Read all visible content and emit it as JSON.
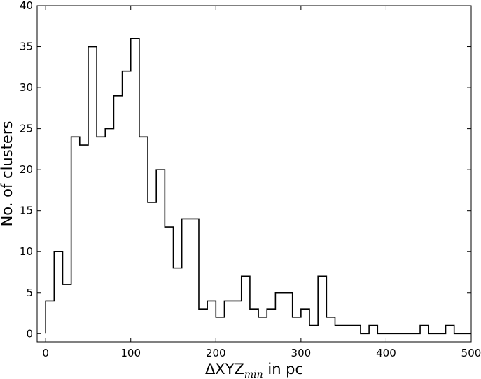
{
  "chart_data": {
    "type": "bar",
    "subtype": "step-histogram",
    "title": "",
    "xlabel": "ΔXYZ",
    "xlabel_subscript": "min",
    "xlabel_suffix": " in pc",
    "ylabel": "No. of clusters",
    "xlim": [
      -10,
      500
    ],
    "ylim": [
      -1,
      40
    ],
    "xticks": [
      0,
      100,
      200,
      300,
      400,
      500
    ],
    "yticks": [
      0,
      5,
      10,
      15,
      20,
      25,
      30,
      35,
      40
    ],
    "grid": false,
    "legend": "none",
    "line_color": "#000000",
    "bin_width": 10,
    "bins_start": 0,
    "values": [
      4,
      10,
      6,
      24,
      23,
      35,
      24,
      25,
      29,
      32,
      36,
      24,
      16,
      20,
      13,
      8,
      14,
      14,
      3,
      4,
      2,
      4,
      4,
      7,
      3,
      2,
      3,
      5,
      5,
      2,
      3,
      1,
      7,
      2,
      1,
      1,
      1,
      0,
      1,
      0,
      0,
      0,
      0,
      0,
      1,
      0,
      0,
      1,
      0,
      0
    ]
  }
}
